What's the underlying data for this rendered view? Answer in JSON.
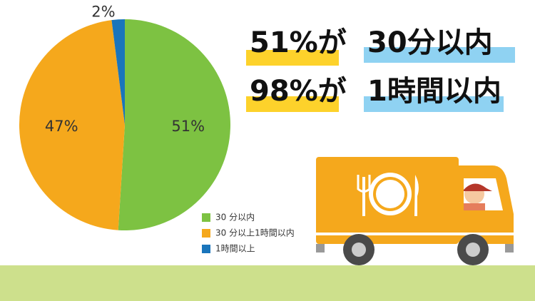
{
  "chart_data": {
    "type": "pie",
    "categories": [
      "30 分以内",
      "30 分以上1時間以内",
      "1時間以上"
    ],
    "values": [
      51,
      47,
      2
    ],
    "value_labels": [
      "51%",
      "47%",
      "2%"
    ],
    "colors": [
      "#7dc242",
      "#f5a81c",
      "#1a75bb"
    ]
  },
  "headlines": [
    {
      "left": "51%が",
      "right": "30分以内"
    },
    {
      "left": "98%が",
      "right": "1時間以内"
    }
  ]
}
